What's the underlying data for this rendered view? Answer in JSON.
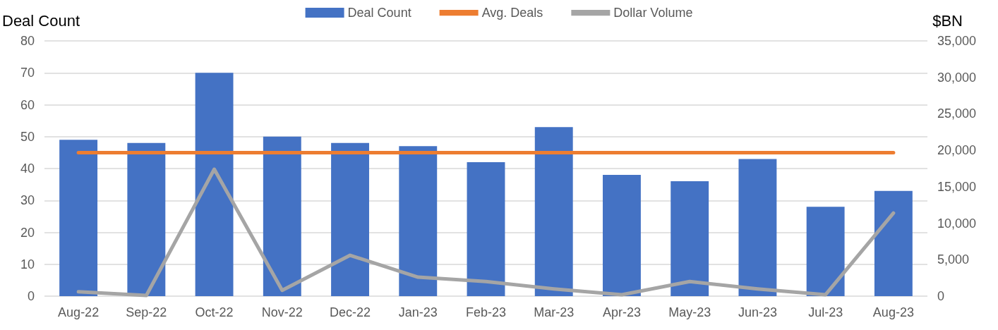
{
  "chart_data": {
    "type": "bar",
    "ylabel": "Deal Count",
    "y2label": "$BN",
    "categories": [
      "Aug-22",
      "Sep-22",
      "Oct-22",
      "Nov-22",
      "Dec-22",
      "Jan-23",
      "Feb-23",
      "Mar-23",
      "Apr-23",
      "May-23",
      "Jun-23",
      "Jul-23",
      "Aug-23"
    ],
    "series": [
      {
        "name": "Deal Count",
        "color": "#4472c4",
        "values": [
          49,
          48,
          70,
          50,
          48,
          47,
          42,
          53,
          38,
          36,
          43,
          28,
          33
        ]
      },
      {
        "name": "Avg. Deals",
        "type": "line",
        "color": "#ed7d31",
        "values": [
          45,
          45,
          45,
          45,
          45,
          45,
          45,
          45,
          45,
          45,
          45,
          45,
          45
        ]
      },
      {
        "name": "Dollar Volume",
        "type": "line",
        "axis": "y2",
        "color": "#a5a5a5",
        "values": [
          600,
          100,
          17400,
          800,
          5600,
          2600,
          2000,
          1000,
          200,
          2000,
          1000,
          200,
          11400
        ]
      }
    ],
    "ylim": [
      0,
      80
    ],
    "yticks": [
      0,
      10,
      20,
      30,
      40,
      50,
      60,
      70,
      80
    ],
    "y2lim": [
      0,
      35000
    ],
    "y2ticks": [
      {
        "value": 0,
        "label": "0"
      },
      {
        "value": 5000,
        "label": "5,000"
      },
      {
        "value": 10000,
        "label": "10,000"
      },
      {
        "value": 15000,
        "label": "15,000"
      },
      {
        "value": 20000,
        "label": "20,000"
      },
      {
        "value": 25000,
        "label": "25,000"
      },
      {
        "value": 30000,
        "label": "30,000"
      },
      {
        "value": 35000,
        "label": "35,000"
      }
    ],
    "grid": "y",
    "legend": "top",
    "marker": "none"
  }
}
